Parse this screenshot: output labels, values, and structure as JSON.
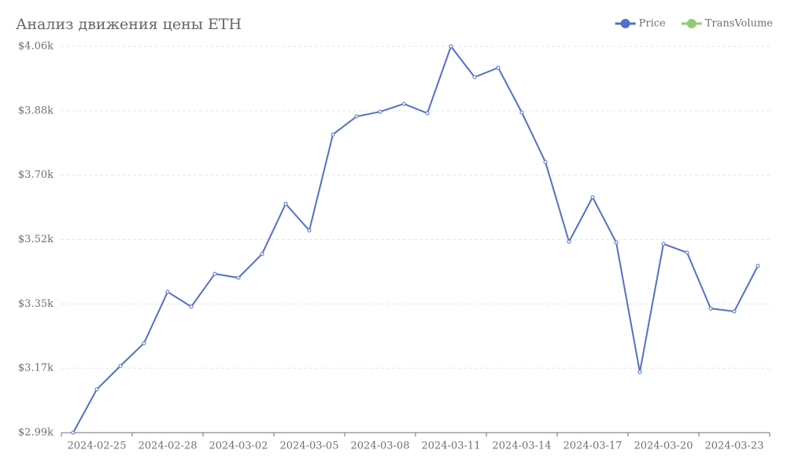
{
  "chart_data": {
    "type": "line",
    "title": "Анализ движения цены ETH",
    "categories": [
      null,
      "2024-02-25",
      null,
      null,
      "2024-02-28",
      null,
      null,
      "2024-03-02",
      null,
      null,
      "2024-03-05",
      null,
      null,
      "2024-03-08",
      null,
      null,
      "2024-03-11",
      null,
      null,
      "2024-03-14",
      null,
      null,
      "2024-03-17",
      null,
      null,
      "2024-03-20",
      null,
      null,
      "2024-03-23",
      null
    ],
    "series": [
      {
        "name": "Price",
        "color": "#5470c6",
        "values": [
          2990,
          3110,
          3175,
          3238,
          3380,
          3339,
          3430,
          3419,
          3485,
          3624,
          3550,
          3816,
          3866,
          3879,
          3901,
          3875,
          4060,
          3975,
          4001,
          3877,
          3740,
          3519,
          3642,
          3517,
          3158,
          3513,
          3489,
          3334,
          3326,
          3452
        ]
      },
      {
        "name": "TransVolume",
        "color": "#91cc75",
        "values": [
          null,
          null,
          null,
          null,
          null,
          null,
          null,
          null,
          null,
          null,
          null,
          null,
          null,
          null,
          null,
          null,
          null,
          null,
          null,
          null,
          null,
          null,
          null,
          null,
          null,
          null,
          null,
          null,
          null,
          null
        ]
      }
    ],
    "ylim": [
      2990,
      4060
    ],
    "yticks": [
      {
        "value": 2990,
        "label": "$2.99k"
      },
      {
        "value": 3168.33,
        "label": "$3.17k"
      },
      {
        "value": 3346.67,
        "label": "$3.35k"
      },
      {
        "value": 3525,
        "label": "$3.52k"
      },
      {
        "value": 3703.33,
        "label": "$3.70k"
      },
      {
        "value": 3881.67,
        "label": "$3.88k"
      },
      {
        "value": 4060,
        "label": "$4.06k"
      }
    ],
    "grid": true
  }
}
